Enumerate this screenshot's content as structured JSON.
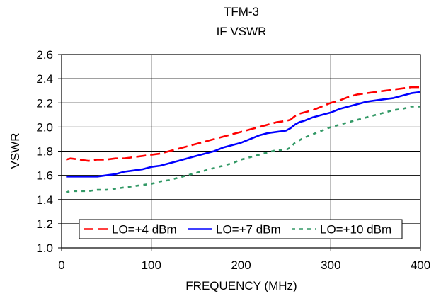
{
  "chart_data": {
    "type": "line",
    "title": "TFM-3",
    "subtitle": "IF VSWR",
    "xlabel": "FREQUENCY (MHz)",
    "ylabel": "VSWR",
    "xlim": [
      0,
      400
    ],
    "ylim": [
      1.0,
      2.6
    ],
    "xticks": [
      0,
      100,
      200,
      300,
      400
    ],
    "yticks": [
      1.0,
      1.2,
      1.4,
      1.6,
      1.8,
      2.0,
      2.2,
      2.4,
      2.6
    ],
    "grid": "vertical and horizontal major gridlines",
    "legend_position": "bottom-inside",
    "series": [
      {
        "name": "LO=+4 dBm",
        "color": "#ff0000",
        "style": "dashed",
        "x": [
          5,
          10,
          20,
          30,
          40,
          50,
          60,
          70,
          80,
          90,
          100,
          110,
          120,
          130,
          140,
          150,
          160,
          170,
          180,
          190,
          200,
          210,
          220,
          230,
          240,
          250,
          255,
          260,
          265,
          270,
          280,
          290,
          300,
          310,
          320,
          330,
          340,
          350,
          360,
          370,
          380,
          390,
          400
        ],
        "values": [
          1.73,
          1.74,
          1.73,
          1.72,
          1.73,
          1.73,
          1.74,
          1.74,
          1.75,
          1.76,
          1.77,
          1.78,
          1.8,
          1.82,
          1.84,
          1.86,
          1.88,
          1.9,
          1.92,
          1.94,
          1.96,
          1.98,
          2.0,
          2.02,
          2.04,
          2.05,
          2.06,
          2.09,
          2.11,
          2.12,
          2.14,
          2.17,
          2.2,
          2.22,
          2.25,
          2.27,
          2.28,
          2.29,
          2.3,
          2.31,
          2.32,
          2.33,
          2.33
        ]
      },
      {
        "name": "LO=+7 dBm",
        "color": "#0000ff",
        "style": "solid",
        "x": [
          5,
          10,
          20,
          30,
          40,
          50,
          60,
          70,
          80,
          90,
          100,
          110,
          120,
          130,
          140,
          150,
          160,
          170,
          180,
          190,
          200,
          210,
          220,
          230,
          240,
          250,
          255,
          260,
          265,
          270,
          280,
          290,
          300,
          310,
          320,
          330,
          340,
          350,
          360,
          370,
          380,
          390,
          400
        ],
        "values": [
          1.59,
          1.59,
          1.59,
          1.59,
          1.59,
          1.6,
          1.61,
          1.63,
          1.64,
          1.65,
          1.67,
          1.68,
          1.7,
          1.72,
          1.74,
          1.76,
          1.78,
          1.8,
          1.83,
          1.85,
          1.87,
          1.9,
          1.93,
          1.95,
          1.96,
          1.97,
          1.99,
          2.02,
          2.04,
          2.05,
          2.08,
          2.1,
          2.12,
          2.15,
          2.17,
          2.19,
          2.21,
          2.22,
          2.23,
          2.24,
          2.26,
          2.28,
          2.29
        ]
      },
      {
        "name": "LO=+10 dBm",
        "color": "#339966",
        "style": "dotted",
        "x": [
          5,
          10,
          20,
          30,
          40,
          50,
          60,
          70,
          80,
          90,
          100,
          110,
          120,
          130,
          140,
          150,
          160,
          170,
          180,
          190,
          200,
          210,
          220,
          230,
          240,
          250,
          255,
          260,
          265,
          270,
          280,
          290,
          300,
          310,
          320,
          330,
          340,
          350,
          360,
          370,
          380,
          390,
          400
        ],
        "values": [
          1.46,
          1.47,
          1.47,
          1.47,
          1.48,
          1.48,
          1.49,
          1.5,
          1.51,
          1.52,
          1.53,
          1.55,
          1.56,
          1.58,
          1.6,
          1.62,
          1.64,
          1.66,
          1.68,
          1.7,
          1.73,
          1.75,
          1.77,
          1.79,
          1.81,
          1.81,
          1.83,
          1.87,
          1.89,
          1.91,
          1.94,
          1.97,
          2.0,
          2.02,
          2.04,
          2.06,
          2.08,
          2.1,
          2.12,
          2.14,
          2.15,
          2.17,
          2.17
        ]
      }
    ]
  }
}
